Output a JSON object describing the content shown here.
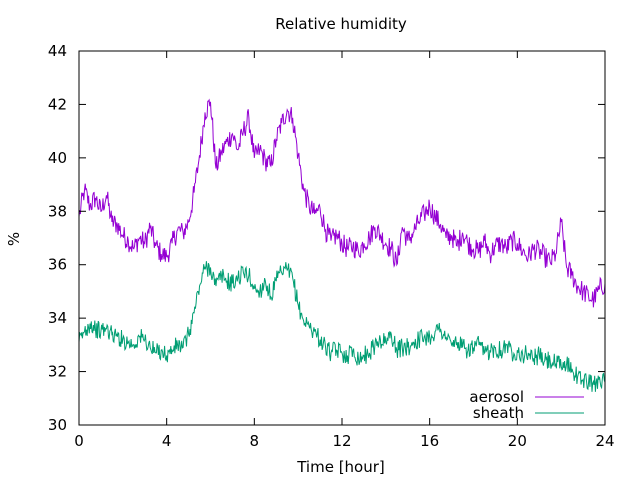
{
  "chart_data": {
    "type": "line",
    "title": "Relative humidity",
    "xlabel": "Time [hour]",
    "ylabel": "%",
    "xlim": [
      0,
      24
    ],
    "ylim": [
      30,
      44
    ],
    "xticks": [
      0,
      4,
      8,
      12,
      16,
      20,
      24
    ],
    "yticks": [
      30,
      32,
      34,
      36,
      38,
      40,
      42,
      44
    ],
    "grid": false,
    "legend_position": "bottom-right",
    "series": [
      {
        "name": "aerosol",
        "color": "#9400d3",
        "x": [
          0,
          0.25,
          0.5,
          0.75,
          1,
          1.25,
          1.5,
          1.75,
          2,
          2.25,
          2.5,
          2.75,
          3,
          3.25,
          3.5,
          3.75,
          4,
          4.25,
          4.5,
          4.75,
          5,
          5.25,
          5.5,
          5.75,
          6,
          6.25,
          6.5,
          6.75,
          7,
          7.25,
          7.5,
          7.75,
          8,
          8.25,
          8.5,
          8.75,
          9,
          9.25,
          9.5,
          9.75,
          10,
          10.25,
          10.5,
          10.75,
          11,
          11.25,
          11.5,
          11.75,
          12,
          12.25,
          12.5,
          12.75,
          13,
          13.25,
          13.5,
          13.75,
          14,
          14.25,
          14.5,
          14.75,
          15,
          15.25,
          15.5,
          15.75,
          16,
          16.25,
          16.5,
          16.75,
          17,
          17.25,
          17.5,
          17.75,
          18,
          18.25,
          18.5,
          18.75,
          19,
          19.25,
          19.5,
          19.75,
          20,
          20.25,
          20.5,
          20.75,
          21,
          21.25,
          21.5,
          21.75,
          22,
          22.25,
          22.5,
          22.75,
          23,
          23.25,
          23.5,
          23.75,
          24
        ],
        "y": [
          37.8,
          38.8,
          38.2,
          38.5,
          38.0,
          38.6,
          37.6,
          37.5,
          37.1,
          36.9,
          36.6,
          37.0,
          36.8,
          37.4,
          36.7,
          36.4,
          36.3,
          36.8,
          37.3,
          37.2,
          37.6,
          38.7,
          40.1,
          41.7,
          42.1,
          39.6,
          40.2,
          40.6,
          40.9,
          40.3,
          41.0,
          41.5,
          40.0,
          40.3,
          39.9,
          39.7,
          40.7,
          41.3,
          41.8,
          41.5,
          40.1,
          38.8,
          38.2,
          37.9,
          38.1,
          37.3,
          36.9,
          37.1,
          36.8,
          36.6,
          36.7,
          36.5,
          36.8,
          37.0,
          37.4,
          37.1,
          36.8,
          36.6,
          36.0,
          37.4,
          36.9,
          37.2,
          37.6,
          37.9,
          38.2,
          37.8,
          37.5,
          37.0,
          37.1,
          36.7,
          37.2,
          36.8,
          36.6,
          36.5,
          36.9,
          36.4,
          36.7,
          36.8,
          36.6,
          36.9,
          36.8,
          36.5,
          36.3,
          36.6,
          36.5,
          36.3,
          36.1,
          36.4,
          37.6,
          35.9,
          35.6,
          35.2,
          35.0,
          34.8,
          34.7,
          35.1,
          35.3
        ],
        "fine_noise_amplitude": 0.4
      },
      {
        "name": "sheath",
        "color": "#009e73",
        "x": [
          0,
          0.25,
          0.5,
          0.75,
          1,
          1.25,
          1.5,
          1.75,
          2,
          2.25,
          2.5,
          2.75,
          3,
          3.25,
          3.5,
          3.75,
          4,
          4.25,
          4.5,
          4.75,
          5,
          5.25,
          5.5,
          5.75,
          6,
          6.25,
          6.5,
          6.75,
          7,
          7.25,
          7.5,
          7.75,
          8,
          8.25,
          8.5,
          8.75,
          9,
          9.25,
          9.5,
          9.75,
          10,
          10.25,
          10.5,
          10.75,
          11,
          11.25,
          11.5,
          11.75,
          12,
          12.25,
          12.5,
          12.75,
          13,
          13.25,
          13.5,
          13.75,
          14,
          14.25,
          14.5,
          14.75,
          15,
          15.25,
          15.5,
          15.75,
          16,
          16.25,
          16.5,
          16.75,
          17,
          17.25,
          17.5,
          17.75,
          18,
          18.25,
          18.5,
          18.75,
          19,
          19.25,
          19.5,
          19.75,
          20,
          20.25,
          20.5,
          20.75,
          21,
          21.25,
          21.5,
          21.75,
          22,
          22.25,
          22.5,
          22.75,
          23,
          23.25,
          23.5,
          23.75,
          24
        ],
        "y": [
          33.1,
          33.5,
          33.8,
          33.6,
          33.5,
          33.6,
          33.4,
          33.3,
          33.2,
          33.1,
          33.0,
          33.3,
          33.2,
          32.9,
          32.7,
          32.8,
          32.6,
          32.8,
          33.0,
          32.9,
          33.4,
          34.2,
          35.2,
          35.9,
          35.9,
          35.2,
          35.6,
          35.4,
          35.3,
          35.5,
          35.7,
          35.6,
          35.1,
          35.0,
          35.4,
          34.8,
          35.4,
          35.7,
          35.8,
          35.5,
          34.5,
          33.9,
          33.7,
          33.5,
          33.2,
          32.9,
          32.7,
          32.8,
          32.7,
          32.6,
          32.8,
          32.5,
          32.6,
          32.7,
          33.0,
          33.2,
          33.1,
          33.4,
          32.8,
          32.9,
          32.9,
          33.1,
          33.2,
          33.3,
          33.3,
          33.5,
          33.6,
          33.3,
          33.0,
          33.1,
          32.9,
          32.8,
          32.9,
          33.0,
          32.7,
          32.8,
          32.9,
          32.8,
          33.0,
          32.7,
          32.8,
          32.6,
          32.7,
          32.5,
          32.6,
          32.4,
          32.4,
          32.3,
          32.2,
          32.3,
          32.1,
          31.8,
          31.7,
          31.6,
          31.5,
          31.8,
          31.6
        ],
        "fine_noise_amplitude": 0.35
      }
    ]
  }
}
